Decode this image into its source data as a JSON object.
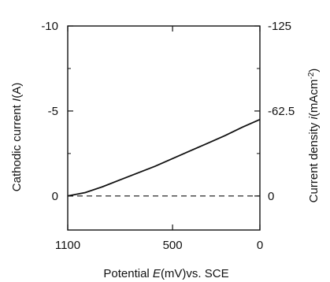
{
  "chart_data": {
    "type": "line",
    "xlabel_prefix": "Potential ",
    "xlabel_var": "E",
    "xlabel_suffix": "(mV)vs. SCE",
    "ylabel_prefix": "Cathodic  current ",
    "ylabel_var": "I",
    "ylabel_suffix": "(A)",
    "y2label_prefix": "Current density ",
    "y2label_var": "i",
    "y2label_suffix": "(mAcm",
    "y2label_sup": "-2",
    "y2label_close": ")",
    "xlim": [
      1100,
      0
    ],
    "ylim": [
      -10,
      2
    ],
    "x_ticks": [
      1100,
      500,
      0
    ],
    "x_tick_labels": [
      "1100",
      "500",
      "0"
    ],
    "y_ticks": [
      -10,
      -5,
      0
    ],
    "y_tick_labels": [
      "-10",
      "-5",
      "0"
    ],
    "y2_ticks": [
      -10,
      -5,
      0
    ],
    "y2_tick_labels": [
      "-125",
      "-62.5",
      "0"
    ],
    "grid": false,
    "series": [
      {
        "style": "solid",
        "x": [
          1100,
          1000,
          900,
          800,
          700,
          600,
          500,
          400,
          300,
          200,
          100,
          0
        ],
        "y": [
          0,
          -0.2,
          -0.55,
          -0.95,
          -1.35,
          -1.75,
          -2.2,
          -2.65,
          -3.1,
          -3.55,
          -4.05,
          -4.5
        ]
      },
      {
        "style": "dashed",
        "x": [
          1100,
          0
        ],
        "y": [
          0,
          0
        ]
      }
    ]
  }
}
